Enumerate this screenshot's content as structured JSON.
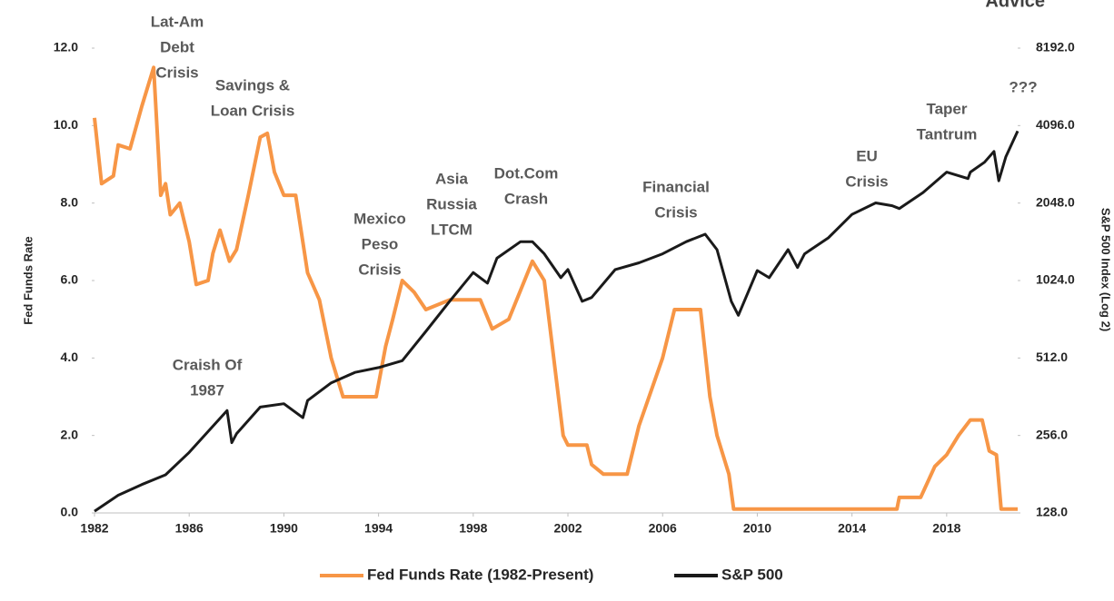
{
  "chart_data": {
    "type": "line",
    "brand": "Advice",
    "ylabel": "Fed Funds Rate",
    "y2label": "S&P 500 Index (Log 2)",
    "xlim": [
      1982,
      2021
    ],
    "xticks": [
      1982,
      1986,
      1990,
      1994,
      1998,
      2002,
      2006,
      2010,
      2014,
      2018
    ],
    "ylim": [
      0,
      12
    ],
    "yticks": [
      {
        "value": 0,
        "label": "0.0"
      },
      {
        "value": 2,
        "label": "2.0"
      },
      {
        "value": 4,
        "label": "4.0"
      },
      {
        "value": 6,
        "label": "6.0"
      },
      {
        "value": 8,
        "label": "8.0"
      },
      {
        "value": 10,
        "label": "10.0"
      },
      {
        "value": 12,
        "label": "12.0"
      }
    ],
    "y2lim": [
      128,
      8192
    ],
    "y2scale": "log2",
    "y2ticks": [
      {
        "value": 128,
        "label": "128.0"
      },
      {
        "value": 256,
        "label": "256.0"
      },
      {
        "value": 512,
        "label": "512.0"
      },
      {
        "value": 1024,
        "label": "1024.0"
      },
      {
        "value": 2048,
        "label": "2048.0"
      },
      {
        "value": 4096,
        "label": "4096.0"
      },
      {
        "value": 8192,
        "label": "8192.0"
      }
    ],
    "legend": "bottom",
    "annotations": [
      [
        "Lat-Am",
        "Debt",
        "Crisis"
      ],
      [
        "Savings &",
        "Loan Crisis"
      ],
      [
        "Mexico",
        "Peso",
        "Crisis"
      ],
      [
        "Craish Of",
        "1987"
      ],
      [
        "Asia",
        "Russia",
        "LTCM"
      ],
      [
        "Dot.Com",
        "Crash"
      ],
      [
        "Financial",
        "Crisis"
      ],
      [
        "EU",
        "Crisis"
      ],
      [
        "Taper",
        "Tantrum"
      ],
      [
        "???"
      ]
    ],
    "series": [
      {
        "name": "Fed Funds Rate (1982-Present)",
        "color": "#f79646",
        "axis": "y",
        "x": [
          1982.0,
          1982.3,
          1982.8,
          1983.0,
          1983.5,
          1984.0,
          1984.5,
          1984.8,
          1985.0,
          1985.2,
          1985.6,
          1986.0,
          1986.3,
          1986.8,
          1987.0,
          1987.3,
          1987.7,
          1988.0,
          1988.5,
          1989.0,
          1989.3,
          1989.6,
          1990.0,
          1990.5,
          1991.0,
          1991.5,
          1992.0,
          1992.5,
          1993.0,
          1993.9,
          1994.3,
          1994.6,
          1995.0,
          1995.5,
          1996.0,
          1997.0,
          1998.0,
          1998.3,
          1998.8,
          1999.5,
          2000.0,
          2000.5,
          2001.0,
          2001.3,
          2001.8,
          2002.0,
          2002.8,
          2003.0,
          2003.5,
          2004.5,
          2005.0,
          2006.0,
          2006.5,
          2007.6,
          2008.0,
          2008.3,
          2008.8,
          2009.0,
          2015.9,
          2016.0,
          2016.9,
          2017.5,
          2018.0,
          2018.5,
          2019.0,
          2019.5,
          2019.8,
          2020.1,
          2020.3,
          2021.0
        ],
        "values": [
          10.2,
          8.5,
          8.7,
          9.5,
          9.4,
          10.5,
          11.5,
          8.2,
          8.5,
          7.7,
          8.0,
          7.0,
          5.9,
          6.0,
          6.7,
          7.3,
          6.5,
          6.8,
          8.2,
          9.7,
          9.8,
          8.8,
          8.2,
          8.2,
          6.2,
          5.5,
          4.0,
          3.0,
          3.0,
          3.0,
          4.3,
          5.0,
          6.0,
          5.7,
          5.25,
          5.5,
          5.5,
          5.5,
          4.75,
          5.0,
          5.75,
          6.5,
          6.0,
          4.5,
          2.0,
          1.75,
          1.75,
          1.25,
          1.0,
          1.0,
          2.25,
          4.0,
          5.25,
          5.25,
          3.0,
          2.0,
          1.0,
          0.1,
          0.1,
          0.4,
          0.4,
          1.2,
          1.5,
          2.0,
          2.4,
          2.4,
          1.6,
          1.5,
          0.1,
          0.1
        ]
      },
      {
        "name": "S&P 500",
        "color": "#1a1a1a",
        "axis": "y2",
        "x": [
          1982.0,
          1983.0,
          1984.0,
          1985.0,
          1986.0,
          1987.6,
          1987.8,
          1988.0,
          1989.0,
          1990.0,
          1990.8,
          1991.0,
          1992.0,
          1993.0,
          1994.0,
          1995.0,
          1996.0,
          1997.0,
          1998.0,
          1998.6,
          1999.0,
          2000.0,
          2000.5,
          2001.0,
          2001.7,
          2002.0,
          2002.6,
          2003.0,
          2004.0,
          2005.0,
          2006.0,
          2007.0,
          2007.8,
          2008.3,
          2008.9,
          2009.2,
          2010.0,
          2010.5,
          2011.3,
          2011.7,
          2012.0,
          2013.0,
          2014.0,
          2015.0,
          2015.7,
          2016.0,
          2017.0,
          2018.0,
          2018.9,
          2019.0,
          2019.6,
          2020.0,
          2020.2,
          2020.5,
          2021.0
        ],
        "values": [
          130,
          150,
          165,
          180,
          220,
          320,
          240,
          260,
          330,
          340,
          300,
          350,
          410,
          450,
          470,
          500,
          650,
          850,
          1100,
          1000,
          1250,
          1450,
          1450,
          1300,
          1050,
          1130,
          850,
          880,
          1130,
          1200,
          1300,
          1450,
          1550,
          1350,
          850,
          750,
          1120,
          1050,
          1350,
          1150,
          1300,
          1500,
          1850,
          2050,
          2000,
          1950,
          2250,
          2700,
          2550,
          2700,
          2950,
          3250,
          2500,
          3100,
          3900
        ]
      }
    ]
  }
}
